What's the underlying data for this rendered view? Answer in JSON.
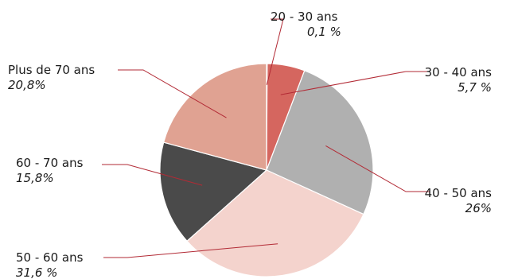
{
  "chart_data": {
    "type": "pie",
    "start_angle_deg": 0,
    "direction": "clockwise",
    "leader_line_color": "#b22a35",
    "slice_border_color": "#ffffff",
    "slices": [
      {
        "label": "20 - 30 ans",
        "value_label": "0,1 %",
        "value": 0.1,
        "color": "#d8e0ea"
      },
      {
        "label": "30 - 40 ans",
        "value_label": "5,7 %",
        "value": 5.7,
        "color": "#d5665f"
      },
      {
        "label": "40 - 50 ans",
        "value_label": "26%",
        "value": 26,
        "color": "#b0b0b0"
      },
      {
        "label": "50 - 60 ans",
        "value_label": "31,6 %",
        "value": 31.6,
        "color": "#f4d3cd"
      },
      {
        "label": "60 - 70 ans",
        "value_label": "15,8%",
        "value": 15.8,
        "color": "#4a4a4a"
      },
      {
        "label": "Plus de 70 ans",
        "value_label": "20,8%",
        "value": 20.8,
        "color": "#e0a292"
      }
    ]
  }
}
